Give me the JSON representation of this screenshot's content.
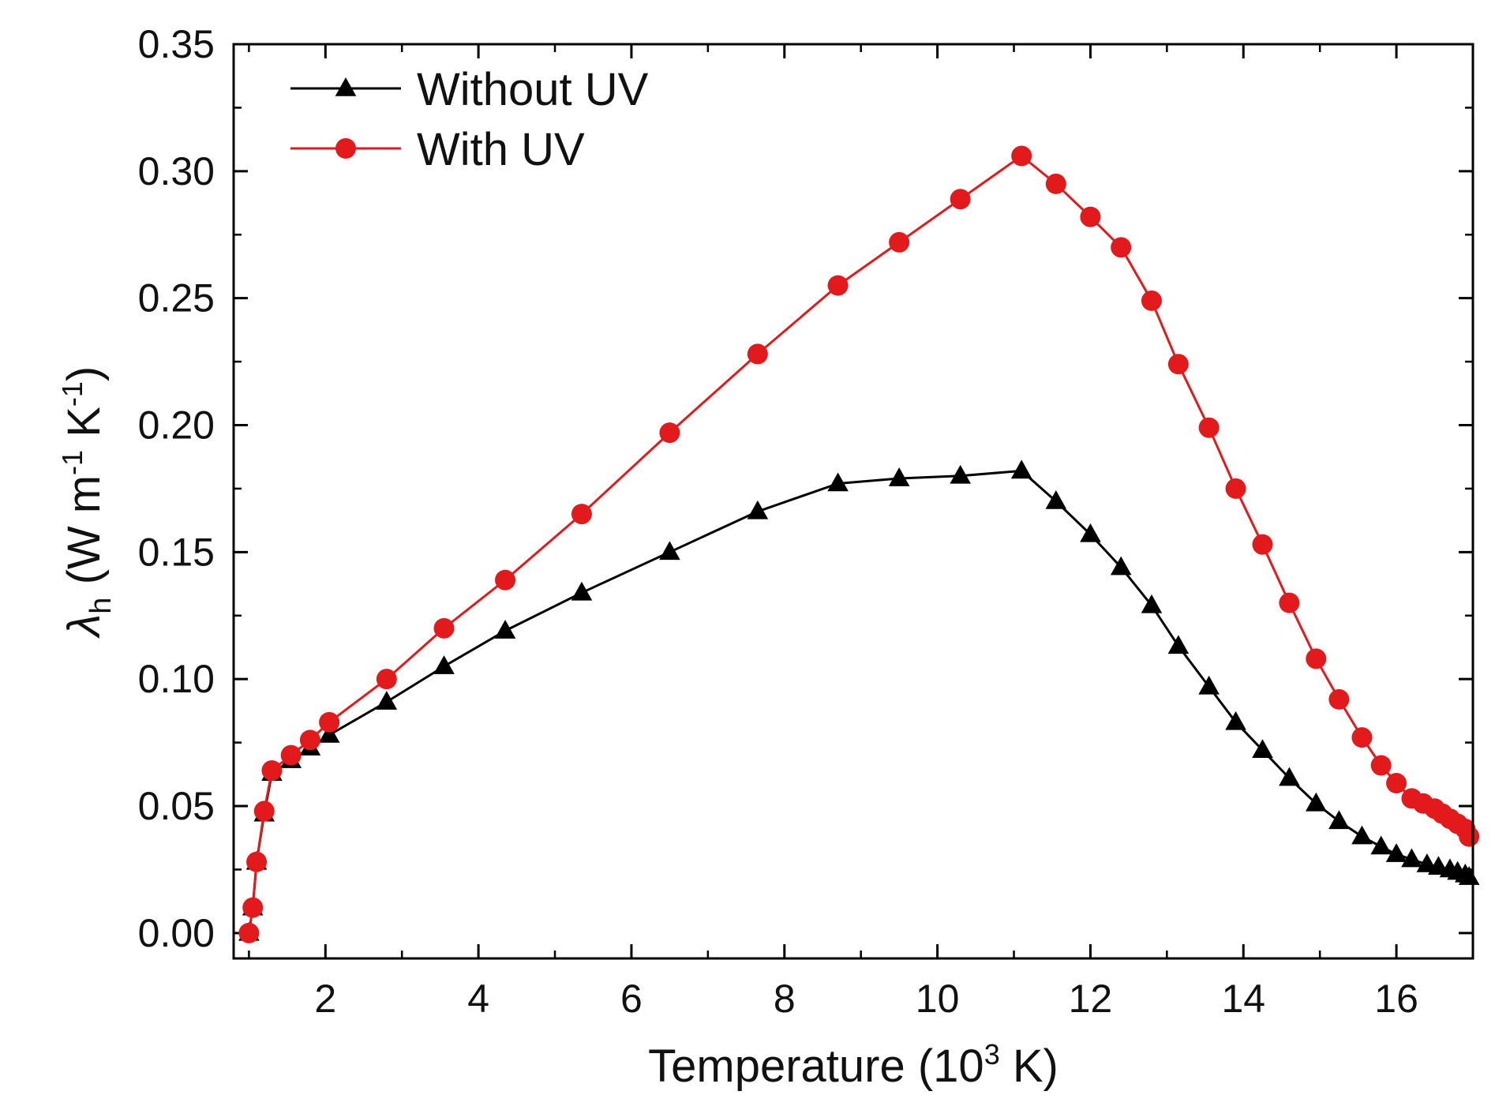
{
  "chart_data": {
    "type": "line",
    "title": "",
    "xlabel": {
      "main": "Temperature (10",
      "sup": "3",
      "tail": " K)"
    },
    "ylabel": {
      "symbol": "λ",
      "sub": "h",
      "open": " (W m",
      "sup1": "-1",
      "mid": " K",
      "sup2": "-1",
      "close": ")"
    },
    "xlim": [
      0.8,
      17.0
    ],
    "ylim": [
      -0.01,
      0.35
    ],
    "xticks": [
      2,
      4,
      6,
      8,
      10,
      12,
      14,
      16
    ],
    "yticks": [
      0.0,
      0.05,
      0.1,
      0.15,
      0.2,
      0.25,
      0.3,
      0.35
    ],
    "ytick_labels": [
      "0.00",
      "0.05",
      "0.10",
      "0.15",
      "0.20",
      "0.25",
      "0.30",
      "0.35"
    ],
    "legend_position": "top-left",
    "series": [
      {
        "name": "Without UV",
        "color": "#000000",
        "marker": "triangle",
        "x": [
          1.0,
          1.05,
          1.1,
          1.2,
          1.3,
          1.55,
          1.8,
          2.05,
          2.8,
          3.55,
          4.35,
          5.35,
          6.5,
          7.65,
          8.7,
          9.5,
          10.3,
          11.1,
          11.55,
          12.0,
          12.4,
          12.8,
          13.15,
          13.55,
          13.9,
          14.25,
          14.6,
          14.95,
          15.25,
          15.55,
          15.8,
          16.0,
          16.2,
          16.4,
          16.55,
          16.7,
          16.8,
          16.9,
          16.95
        ],
        "y": [
          0.0,
          0.01,
          0.028,
          0.047,
          0.063,
          0.068,
          0.073,
          0.078,
          0.091,
          0.105,
          0.119,
          0.134,
          0.15,
          0.166,
          0.177,
          0.179,
          0.18,
          0.182,
          0.17,
          0.157,
          0.144,
          0.129,
          0.113,
          0.097,
          0.083,
          0.072,
          0.061,
          0.051,
          0.044,
          0.038,
          0.034,
          0.031,
          0.029,
          0.027,
          0.026,
          0.025,
          0.024,
          0.023,
          0.022
        ]
      },
      {
        "name": "With UV",
        "color": "#e31a1c",
        "marker": "circle",
        "x": [
          1.0,
          1.05,
          1.1,
          1.2,
          1.3,
          1.55,
          1.8,
          2.05,
          2.8,
          3.55,
          4.35,
          5.35,
          6.5,
          7.65,
          8.7,
          9.5,
          10.3,
          11.1,
          11.55,
          12.0,
          12.4,
          12.8,
          13.15,
          13.55,
          13.9,
          14.25,
          14.6,
          14.95,
          15.25,
          15.55,
          15.8,
          16.0,
          16.2,
          16.35,
          16.5,
          16.6,
          16.7,
          16.8,
          16.9,
          16.95
        ],
        "y": [
          0.0,
          0.01,
          0.028,
          0.048,
          0.064,
          0.07,
          0.076,
          0.083,
          0.1,
          0.12,
          0.139,
          0.165,
          0.197,
          0.228,
          0.255,
          0.272,
          0.289,
          0.306,
          0.295,
          0.282,
          0.27,
          0.249,
          0.224,
          0.199,
          0.175,
          0.153,
          0.13,
          0.108,
          0.092,
          0.077,
          0.066,
          0.059,
          0.053,
          0.051,
          0.049,
          0.047,
          0.045,
          0.043,
          0.041,
          0.038
        ]
      }
    ]
  }
}
